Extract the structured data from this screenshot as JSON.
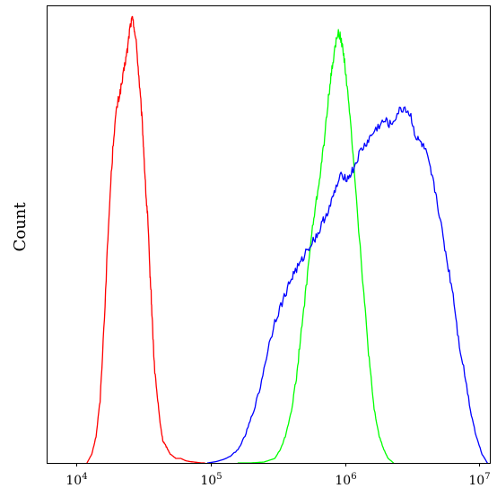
{
  "chart_data": {
    "type": "line",
    "title": "",
    "xlabel": "",
    "ylabel": "Count",
    "x_scale": "log",
    "xlim": [
      6000,
      12000000
    ],
    "ylim": [
      0,
      1.03
    ],
    "grid": false,
    "legend": "none",
    "x_ticks": [
      {
        "value": 10000,
        "base": "10",
        "exp": "4"
      },
      {
        "value": 100000,
        "base": "10",
        "exp": "5"
      },
      {
        "value": 1000000,
        "base": "10",
        "exp": "6"
      },
      {
        "value": 10000000,
        "base": "10",
        "exp": "7"
      }
    ],
    "series": [
      {
        "color": "#ff0000",
        "x": [
          12000,
          13000,
          14000,
          15000,
          16000,
          17000,
          18000,
          19000,
          20000,
          21000,
          22000,
          23000,
          24000,
          25000,
          26000,
          27000,
          28000,
          29000,
          30000,
          31000,
          32000,
          33000,
          34000,
          35000,
          36000,
          37000,
          38000,
          40000,
          42000,
          44000,
          46000,
          48000,
          50000,
          55000,
          60000,
          65000,
          70000,
          75000,
          80000,
          85000,
          90000
        ],
        "y": [
          0.0,
          0.02,
          0.06,
          0.14,
          0.3,
          0.48,
          0.63,
          0.74,
          0.8,
          0.83,
          0.86,
          0.9,
          0.93,
          0.98,
          1.0,
          0.98,
          0.94,
          0.88,
          0.82,
          0.76,
          0.68,
          0.6,
          0.55,
          0.45,
          0.38,
          0.3,
          0.22,
          0.15,
          0.09,
          0.05,
          0.04,
          0.03,
          0.02,
          0.01,
          0.01,
          0.005,
          0.003,
          0.002,
          0.001,
          0.0,
          0.0
        ]
      },
      {
        "color": "#00ff00",
        "x": [
          160000,
          200000,
          250000,
          300000,
          330000,
          360000,
          400000,
          430000,
          460000,
          500000,
          540000,
          580000,
          620000,
          660000,
          700000,
          740000,
          780000,
          820000,
          860000,
          900000,
          940000,
          980000,
          1020000,
          1080000,
          1150000,
          1250000,
          1350000,
          1450000,
          1550000,
          1650000,
          1800000,
          1950000,
          2100000,
          2300000
        ],
        "y": [
          0.0,
          0.0,
          0.002,
          0.01,
          0.03,
          0.06,
          0.12,
          0.18,
          0.26,
          0.36,
          0.46,
          0.54,
          0.6,
          0.66,
          0.72,
          0.8,
          0.86,
          0.91,
          0.95,
          0.97,
          0.95,
          0.92,
          0.87,
          0.79,
          0.7,
          0.55,
          0.42,
          0.3,
          0.2,
          0.12,
          0.06,
          0.03,
          0.01,
          0.0
        ]
      },
      {
        "color": "#0000ff",
        "x": [
          95000,
          110000,
          125000,
          140000,
          160000,
          180000,
          200000,
          230000,
          260000,
          300000,
          340000,
          380000,
          420000,
          470000,
          520000,
          580000,
          640000,
          700000,
          780000,
          860000,
          950000,
          1050000,
          1150000,
          1300000,
          1450000,
          1600000,
          1800000,
          2000000,
          2200000,
          2500000,
          2800000,
          3100000,
          3400000,
          3700000,
          4000000,
          4400000,
          4800000,
          5300000,
          5800000,
          6400000,
          7000000,
          7800000,
          8600000,
          9500000,
          10500000,
          11500000
        ],
        "y": [
          0.0,
          0.003,
          0.008,
          0.015,
          0.03,
          0.06,
          0.1,
          0.16,
          0.24,
          0.32,
          0.36,
          0.4,
          0.43,
          0.45,
          0.48,
          0.5,
          0.52,
          0.55,
          0.58,
          0.62,
          0.65,
          0.64,
          0.66,
          0.7,
          0.72,
          0.74,
          0.76,
          0.77,
          0.76,
          0.79,
          0.8,
          0.78,
          0.73,
          0.72,
          0.7,
          0.65,
          0.6,
          0.52,
          0.45,
          0.38,
          0.28,
          0.2,
          0.12,
          0.06,
          0.02,
          0.0
        ]
      }
    ]
  }
}
